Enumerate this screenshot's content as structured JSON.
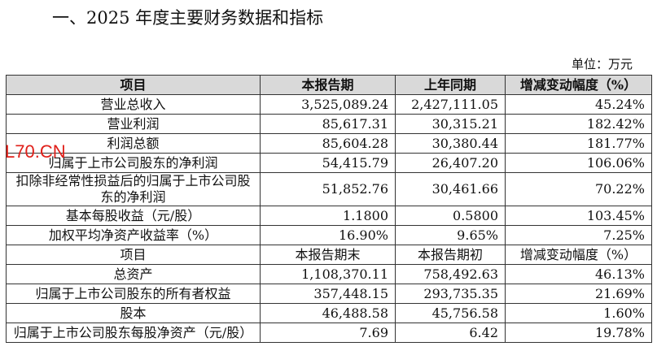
{
  "title": "一、2025 年度主要财务数据和指标",
  "unit": "单位：万元",
  "watermark": "L70.CN",
  "table": {
    "header": [
      "项目",
      "本报告期",
      "上年同期",
      "增减变动幅度（%）"
    ],
    "rows": [
      [
        "营业总收入",
        "3,525,089.24",
        "2,427,111.05",
        "45.24%"
      ],
      [
        "营业利润",
        "85,617.31",
        "30,315.21",
        "182.42%"
      ],
      [
        "利润总额",
        "85,604.28",
        "30,380.44",
        "181.77%"
      ],
      [
        "归属于上市公司股东的净利润",
        "54,415.79",
        "26,407.20",
        "106.06%"
      ],
      [
        "扣除非经常性损益后的归属于上市公司股东的净利润",
        "51,852.76",
        "30,461.66",
        "70.22%"
      ],
      [
        "基本每股收益（元/股）",
        "1.1800",
        "0.5800",
        "103.45%"
      ],
      [
        "加权平均净资产收益率（%）",
        "16.90%",
        "9.65%",
        "7.25%"
      ],
      [
        "项目",
        "本报告期末",
        "本报告期初",
        "增减变动幅度（%）"
      ],
      [
        "总资产",
        "1,108,370.11",
        "758,492.63",
        "46.13%"
      ],
      [
        "归属于上市公司股东的所有者权益",
        "357,448.15",
        "293,735.35",
        "21.69%"
      ],
      [
        "股本",
        "46,488.58",
        "45,756.58",
        "1.60%"
      ],
      [
        "归属于上市公司股东每股净资产（元/股）",
        "7.69",
        "6.42",
        "19.78%"
      ]
    ]
  }
}
